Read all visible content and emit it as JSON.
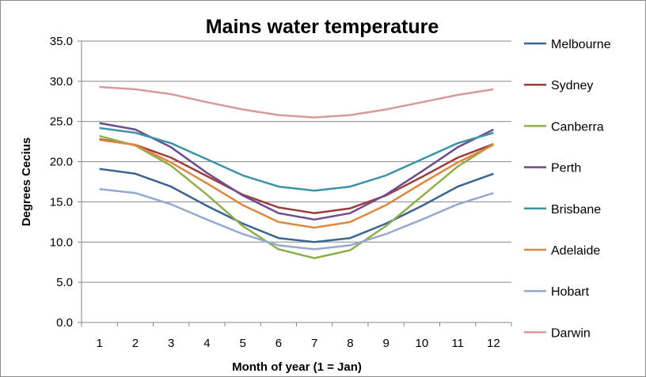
{
  "chart_data": {
    "type": "line",
    "title": "Mains water temperature",
    "xlabel": "Month of year (1 = Jan)",
    "ylabel": "Degrees Cecius",
    "x": [
      1,
      2,
      3,
      4,
      5,
      6,
      7,
      8,
      9,
      10,
      11,
      12
    ],
    "x_tick_labels": [
      "1",
      "2",
      "3",
      "4",
      "5",
      "6",
      "7",
      "8",
      "9",
      "10",
      "11",
      "12"
    ],
    "ylim": [
      0,
      35
    ],
    "y_tick_labels": [
      "0.0",
      "5.0",
      "10.0",
      "15.0",
      "20.0",
      "25.0",
      "30.0",
      "35.0"
    ],
    "grid": "horizontal",
    "legend_position": "right",
    "series": [
      {
        "name": "Melbourne",
        "color": "#3a6593",
        "values": [
          19.1,
          18.5,
          16.9,
          14.5,
          12.3,
          10.5,
          10.0,
          10.5,
          12.3,
          14.5,
          16.9,
          18.5
        ]
      },
      {
        "name": "Sydney",
        "color": "#9b3d3a",
        "values": [
          22.8,
          22.1,
          20.5,
          18.2,
          15.9,
          14.3,
          13.6,
          14.2,
          15.8,
          18.1,
          20.5,
          22.2
        ]
      },
      {
        "name": "Canberra",
        "color": "#8daf4b",
        "values": [
          23.2,
          22.0,
          19.5,
          15.9,
          12.0,
          9.1,
          8.0,
          9.0,
          12.0,
          15.7,
          19.4,
          22.2
        ]
      },
      {
        "name": "Perth",
        "color": "#6e4b8f",
        "values": [
          24.8,
          24.0,
          21.8,
          18.6,
          15.8,
          13.6,
          12.8,
          13.6,
          15.9,
          18.8,
          21.8,
          24.0
        ]
      },
      {
        "name": "Brisbane",
        "color": "#3b93a6",
        "values": [
          24.2,
          23.6,
          22.3,
          20.3,
          18.3,
          16.9,
          16.4,
          16.9,
          18.3,
          20.3,
          22.3,
          23.6
        ]
      },
      {
        "name": "Adelaide",
        "color": "#e0873f",
        "values": [
          22.7,
          22.1,
          19.9,
          17.3,
          14.6,
          12.5,
          11.8,
          12.5,
          14.6,
          17.3,
          19.9,
          22.1
        ]
      },
      {
        "name": "Hobart",
        "color": "#93a9cf",
        "values": [
          16.6,
          16.1,
          14.7,
          12.8,
          11.0,
          9.6,
          9.1,
          9.6,
          11.0,
          12.8,
          14.7,
          16.1
        ]
      },
      {
        "name": "Darwin",
        "color": "#d69a9a",
        "values": [
          29.3,
          29.0,
          28.4,
          27.4,
          26.5,
          25.8,
          25.5,
          25.8,
          26.5,
          27.4,
          28.3,
          29.0
        ]
      }
    ]
  }
}
